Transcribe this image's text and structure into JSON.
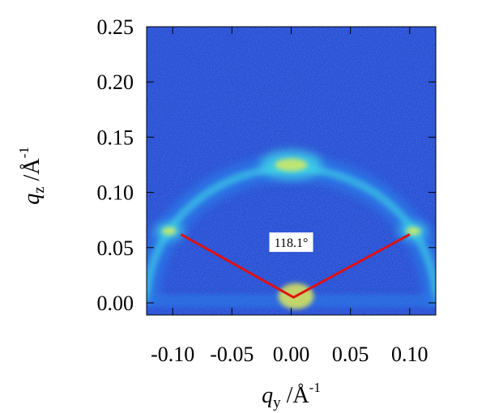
{
  "chart_data": {
    "type": "heatmap",
    "title": "",
    "xlabel": {
      "symbol": "q",
      "subscript": "y",
      "separator": " /Å",
      "superscript": "-1"
    },
    "ylabel": {
      "symbol": "q",
      "subscript": "z",
      "separator": " /Å",
      "superscript": "-1"
    },
    "xlim": [
      -0.122,
      0.122
    ],
    "ylim": [
      -0.011,
      0.25
    ],
    "x_ticks": [
      {
        "value": -0.1,
        "label": "-0.10"
      },
      {
        "value": -0.05,
        "label": "-0.05"
      },
      {
        "value": 0.0,
        "label": "0.00"
      },
      {
        "value": 0.05,
        "label": "0.05"
      },
      {
        "value": 0.1,
        "label": "0.10"
      }
    ],
    "y_ticks": [
      {
        "value": 0.0,
        "label": "0.00"
      },
      {
        "value": 0.05,
        "label": "0.05"
      },
      {
        "value": 0.1,
        "label": "0.10"
      },
      {
        "value": 0.15,
        "label": "0.15"
      },
      {
        "value": 0.2,
        "label": "0.20"
      },
      {
        "value": 0.25,
        "label": "0.25"
      }
    ],
    "grid": false,
    "colormap": [
      "#0a1b6b",
      "#1438c8",
      "#2c7ae8",
      "#40d8e6",
      "#e8f050"
    ],
    "scattering_ring": {
      "center": [
        0.0,
        0.0
      ],
      "radius": 0.122,
      "peaks": [
        {
          "name": "top",
          "q": [
            0.0,
            0.125
          ]
        },
        {
          "name": "left",
          "q": [
            -0.103,
            0.065
          ]
        },
        {
          "name": "right",
          "q": [
            0.103,
            0.065
          ]
        }
      ]
    },
    "annotation": {
      "text": "118.1°",
      "position": [
        0.0,
        0.052
      ],
      "line_color": "#e01010",
      "lines": [
        {
          "from": [
            -0.093,
            0.062
          ],
          "to": [
            0.002,
            0.005
          ]
        },
        {
          "from": [
            0.002,
            0.005
          ],
          "to": [
            0.1,
            0.062
          ]
        }
      ]
    }
  }
}
